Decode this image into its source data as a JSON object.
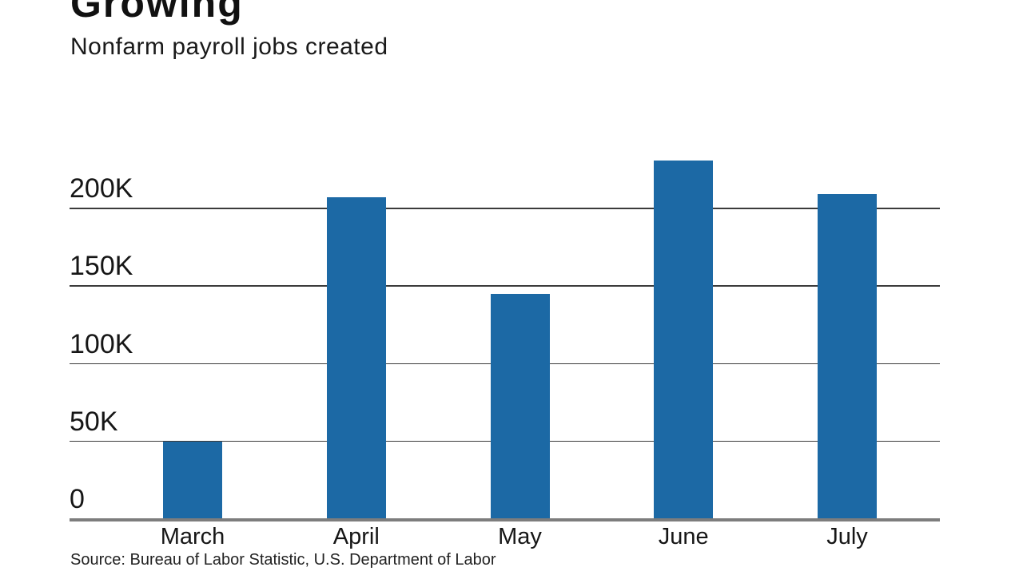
{
  "header": {
    "title": "Growing",
    "subtitle": "Nonfarm payroll jobs created"
  },
  "source_note": "Source: Bureau of Labor Statistic, U.S. Department of Labor",
  "chart_data": {
    "type": "bar",
    "title": "Growing",
    "subtitle": "Nonfarm payroll jobs created",
    "categories": [
      "March",
      "April",
      "May",
      "June",
      "July"
    ],
    "values": [
      50000,
      207000,
      145000,
      231000,
      209000
    ],
    "xlabel": "",
    "ylabel": "",
    "yticks": [
      0,
      50000,
      100000,
      150000,
      200000
    ],
    "ytick_labels": [
      "0",
      "50K",
      "100K",
      "150K",
      "200K"
    ],
    "ylim": [
      0,
      240000
    ],
    "grid": "horizontal-only",
    "legend": "none",
    "bar_color": "#1c69a5",
    "axis_color": "#7d7d7d",
    "source": "Source: Bureau of Labor Statistic, U.S. Department of Labor"
  }
}
